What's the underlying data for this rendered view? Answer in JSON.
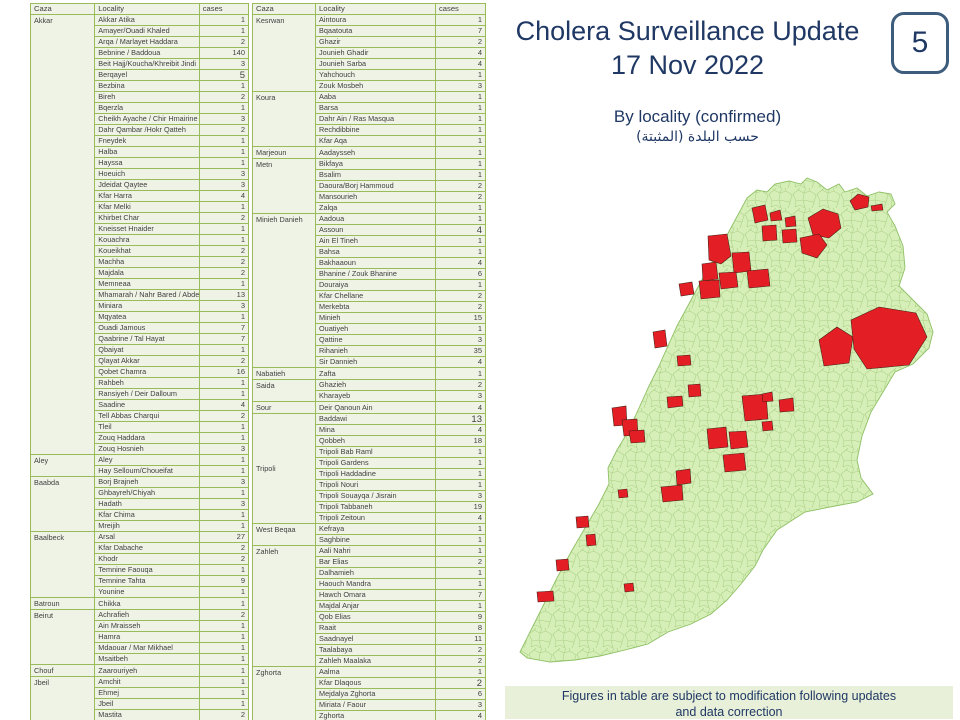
{
  "header": {
    "title_line1": "Cholera Surveillance Update",
    "title_line2": "17 Nov 2022",
    "page_badge": "5",
    "subtitle_en": "By locality (confirmed)",
    "subtitle_ar": "حسب البلدة (المثبتة)"
  },
  "footer": {
    "note_line1": "Figures in table are subject to modification following updates",
    "note_line2": "and data correction"
  },
  "table_headers": {
    "caza": "Caza",
    "locality": "Locality",
    "cases": "cases"
  },
  "colors": {
    "accent": "#1f3864",
    "table_border": "#9abb59",
    "cell_bg": "#eff3e6",
    "map_green": "#d6efb8",
    "map_red": "#e41e25",
    "footer_bg": "#e9f0da",
    "badge_border": "#3e5c7c"
  },
  "tables": {
    "left": [
      {
        "caza": "Akkar",
        "rows": [
          [
            "Akkar Atika",
            1
          ],
          [
            "Amayer/Ouadi Khaled",
            1
          ],
          [
            "Arqa / Marlayet Haddara",
            2
          ],
          [
            "Bebnine / Baddoua",
            140
          ],
          [
            "Beit Hajj/Koucha/Khreibit Jindi",
            3
          ],
          [
            "Berqayel",
            5,
            1
          ],
          [
            "Bezbina",
            1
          ],
          [
            "Bireh",
            2
          ],
          [
            "Bqerzla",
            1
          ],
          [
            "Cheikh Ayache / Chir Hmairine",
            3
          ],
          [
            "Dahr Qambar /Hokr Qatteh",
            2
          ],
          [
            "Fneydek",
            1
          ],
          [
            "Halba",
            1
          ],
          [
            "Hayssa",
            1
          ],
          [
            "Hoeuich",
            3
          ],
          [
            "Jdeidat Qaytee",
            3
          ],
          [
            "Kfar Harra",
            4
          ],
          [
            "Kfar Melki",
            1
          ],
          [
            "Khirbet Char",
            2
          ],
          [
            "Kneisset Hnaider",
            1
          ],
          [
            "Kouachra",
            1
          ],
          [
            "Koueikhat",
            2
          ],
          [
            "Machha",
            2
          ],
          [
            "Majdala",
            2
          ],
          [
            "Memneaa",
            1
          ],
          [
            "Mhamarah / Nahr Bared / Abdeh",
            13
          ],
          [
            "Miniara",
            3
          ],
          [
            "Mqyatea",
            1
          ],
          [
            "Ouadi Jamous",
            7
          ],
          [
            "Qaabrine / Tal Hayat",
            7
          ],
          [
            "Qbaiyat",
            1
          ],
          [
            "Qlayat Akkar",
            2
          ],
          [
            "Qobet Chamra",
            16
          ],
          [
            "Rahbeh",
            1
          ],
          [
            "Ransiyeh / Deir Dalloum",
            1
          ],
          [
            "Saadine",
            4
          ],
          [
            "Tell Abbas Charqui",
            2
          ],
          [
            "Tleil",
            1
          ],
          [
            "Zouq Haddara",
            1
          ],
          [
            "Zouq Hosnieh",
            3
          ]
        ]
      },
      {
        "caza": "Aley",
        "rows": [
          [
            "Aley",
            1
          ],
          [
            "Hay Selloum/Choueifat",
            1
          ]
        ]
      },
      {
        "caza": "Baabda",
        "rows": [
          [
            "Borj Brajneh",
            3
          ],
          [
            "Ghbayreh/Chiyah",
            1
          ],
          [
            "Hadath",
            3
          ],
          [
            "Kfar Chima",
            1
          ],
          [
            "Mreijih",
            1
          ]
        ]
      },
      {
        "caza": "Baalbeck",
        "rows": [
          [
            "Arsal",
            27
          ],
          [
            "Kfar Dabache",
            2
          ],
          [
            "Khodr",
            2
          ],
          [
            "Temnine Faouqa",
            1
          ],
          [
            "Temnine Tahta",
            9
          ],
          [
            "Younine",
            1
          ]
        ]
      },
      {
        "caza": "Batroun",
        "rows": [
          [
            "Chikka",
            1
          ]
        ]
      },
      {
        "caza": "Beirut",
        "rows": [
          [
            "Achrafieh",
            2
          ],
          [
            "Ain Mraisseh",
            1
          ],
          [
            "Hamra",
            1
          ],
          [
            "Mdaouar / Mar Mikhael",
            1
          ],
          [
            "Msaitbeh",
            1
          ]
        ]
      },
      {
        "caza": "Chouf",
        "rows": [
          [
            "Zaarouriyeh",
            1
          ]
        ]
      },
      {
        "caza": "Jbeil",
        "rows": [
          [
            "Amchit",
            1
          ],
          [
            "Ehmej",
            1
          ],
          [
            "Jbeil",
            1
          ],
          [
            "Mastita",
            2
          ]
        ]
      }
    ],
    "right": [
      {
        "caza": "Kesrwan",
        "rows": [
          [
            "Aintoura",
            1
          ],
          [
            "Bqaatouta",
            7
          ],
          [
            "Ghazir",
            2
          ],
          [
            "Jounieh Ghadir",
            4
          ],
          [
            "Jounieh Sarba",
            4
          ],
          [
            "Yahchouch",
            1
          ],
          [
            "Zouk Mosbeh",
            3
          ]
        ]
      },
      {
        "caza": "Koura",
        "rows": [
          [
            "Aaba",
            1
          ],
          [
            "Barsa",
            1
          ],
          [
            "Dahr Ain / Ras Masqua",
            1
          ],
          [
            "Rechdibbine",
            1
          ],
          [
            "Kfar Aqa",
            1
          ]
        ]
      },
      {
        "caza": "Marjeoun",
        "rows": [
          [
            "Aadaysseh",
            1
          ]
        ]
      },
      {
        "caza": "Metn",
        "rows": [
          [
            "Bikfaya",
            1
          ],
          [
            "Bsalim",
            1
          ],
          [
            "Daoura/Borj Hammoud",
            2
          ],
          [
            "Mansourieh",
            2
          ],
          [
            "Zalqa",
            1
          ]
        ]
      },
      {
        "caza": "Minieh Danieh",
        "rows": [
          [
            "Aadoua",
            1
          ],
          [
            "Assoun",
            4,
            1
          ],
          [
            "Ain El Tineh",
            1
          ],
          [
            "Bahsa",
            1
          ],
          [
            "Bakhaaoun",
            4
          ],
          [
            "Bhanine / Zouk Bhanine",
            6
          ],
          [
            "Douraiya",
            1
          ],
          [
            "Kfar Chellane",
            2
          ],
          [
            "Merkebta",
            2
          ],
          [
            "Minieh",
            15
          ],
          [
            "Ouatiyeh",
            1
          ],
          [
            "Qattine",
            3
          ],
          [
            "Rihanieh",
            35
          ],
          [
            "Sir Dannieh",
            4
          ]
        ]
      },
      {
        "caza": "Nabatieh",
        "rows": [
          [
            "Zafta",
            1
          ]
        ]
      },
      {
        "caza": "Saida",
        "rows": [
          [
            "Ghazieh",
            2
          ],
          [
            "Kharayeb",
            3
          ]
        ]
      },
      {
        "caza": "Sour",
        "rows": [
          [
            "Deir Qanoun Ain",
            4
          ]
        ]
      },
      {
        "caza": "Tripoli",
        "valign": "middle",
        "rows": [
          [
            "Baddawi",
            13,
            1
          ],
          [
            "Mina",
            4
          ],
          [
            "Qobbeh",
            18
          ],
          [
            "Tripoli Bab Raml",
            1
          ],
          [
            "Tripoli Gardens",
            1
          ],
          [
            "Tripoli Haddadine",
            1
          ],
          [
            "Tripoli Nouri",
            1
          ],
          [
            "Tripoli Souayqa / Jisrain",
            3
          ],
          [
            "Tripoli Tabbaneh",
            19
          ],
          [
            "Tripoli Zeitoun",
            4
          ]
        ]
      },
      {
        "caza": "West Beqaa",
        "rows": [
          [
            "Kefraya",
            1
          ],
          [
            "Saghbine",
            1
          ]
        ]
      },
      {
        "caza": "Zahleh",
        "rows": [
          [
            "Aali Nahri",
            1
          ],
          [
            "Bar Elias",
            2
          ],
          [
            "Dalhamieh",
            1
          ],
          [
            "Haouch Mandra",
            1
          ],
          [
            "Hawch Omara",
            7
          ],
          [
            "Majdal Anjar",
            1
          ],
          [
            "Qob Elias",
            9
          ],
          [
            "Raait",
            8
          ],
          [
            "Saadnayel",
            11
          ],
          [
            "Taalabaya",
            2
          ],
          [
            "Zahleh Maalaka",
            2
          ]
        ]
      },
      {
        "caza": "Zghorta",
        "rows": [
          [
            "Aalma",
            1
          ],
          [
            "Kfar Dlaqous",
            2,
            1
          ],
          [
            "Mejdalya Zghorta",
            6
          ],
          [
            "Miriata / Faour",
            3
          ],
          [
            "Zghorta",
            4
          ]
        ]
      }
    ]
  }
}
